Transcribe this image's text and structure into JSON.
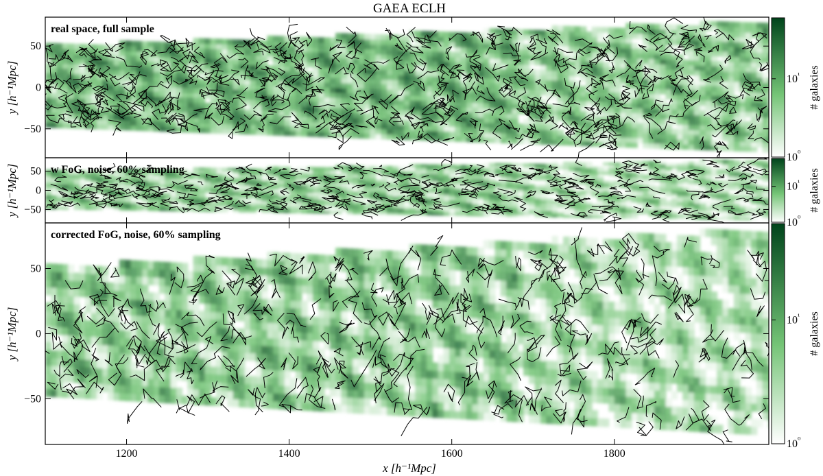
{
  "figure": {
    "title": "GAEA ECLH",
    "xlabel": "x [h⁻¹Mpc]",
    "colormap": {
      "low": "#ffffff",
      "mid": "#74c476",
      "high": "#00441b"
    },
    "filament_color": "#000000"
  },
  "chart_data": [
    {
      "type": "heatmap",
      "panel_label": "real space, full sample",
      "ylabel": "y [h⁻¹Mpc]",
      "xlim": [
        1100,
        1990
      ],
      "ylim": [
        -85,
        85
      ],
      "xticks": [
        1200,
        1400,
        1600,
        1800
      ],
      "yticks": [
        -50,
        0,
        50
      ],
      "colorbar": {
        "label": "# galaxies",
        "scale": "log",
        "range": [
          1,
          60
        ],
        "ticks": [
          {
            "value": 1,
            "label": "10⁰"
          },
          {
            "value": 10,
            "label": "10¹"
          }
        ]
      }
    },
    {
      "type": "heatmap",
      "panel_label": "w FoG, noise, 60% sampling",
      "ylabel": "y [h⁻¹Mpc]",
      "xlim": [
        1100,
        1990
      ],
      "ylim": [
        -85,
        85
      ],
      "xticks": [
        1200,
        1400,
        1600,
        1800
      ],
      "yticks": [
        -50,
        0,
        50
      ],
      "colorbar": {
        "label": "# galaxies",
        "scale": "log",
        "range": [
          1,
          60
        ],
        "ticks": [
          {
            "value": 1,
            "label": "10⁰"
          },
          {
            "value": 10,
            "label": "10¹"
          }
        ]
      }
    },
    {
      "type": "heatmap",
      "panel_label": "corrected FoG, noise, 60% sampling",
      "ylabel": "y [h⁻¹Mpc]",
      "xlim": [
        1100,
        1990
      ],
      "ylim": [
        -85,
        85
      ],
      "xticks": [
        1200,
        1400,
        1600,
        1800
      ],
      "yticks": [
        -50,
        0,
        50
      ],
      "colorbar": {
        "label": "# galaxies",
        "scale": "log",
        "range": [
          1,
          60
        ],
        "ticks": [
          {
            "value": 1,
            "label": "10⁰"
          },
          {
            "value": 10,
            "label": "10¹"
          }
        ]
      }
    }
  ]
}
